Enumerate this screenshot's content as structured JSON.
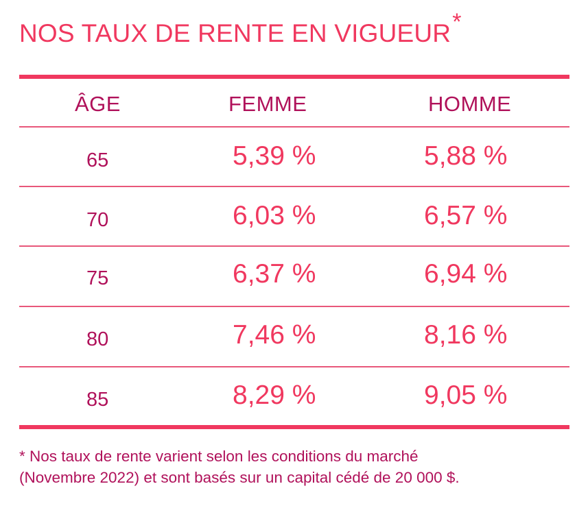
{
  "title": {
    "text": "NOS TAUX DE RENTE EN VIGUEUR",
    "marker": "*"
  },
  "table": {
    "headers": {
      "age": "ÂGE",
      "femme": "FEMME",
      "homme": "HOMME"
    },
    "rows": [
      {
        "age": "65",
        "femme": "5,39 %",
        "homme": "5,88 %"
      },
      {
        "age": "70",
        "femme": "6,03 %",
        "homme": "6,57 %"
      },
      {
        "age": "75",
        "femme": "6,37 %",
        "homme": "6,94 %"
      },
      {
        "age": "80",
        "femme": "7,46 %",
        "homme": "8,16 %"
      },
      {
        "age": "85",
        "femme": "8,29 %",
        "homme": "9,05 %"
      }
    ]
  },
  "footnote": {
    "line1": "* Nos taux de rente varient selon les conditions du marché",
    "line2": "(Novembre 2022) et sont basés sur un capital cédé de 20 000 $."
  },
  "colors": {
    "accent": "#f0385f",
    "dark_accent": "#b0115a"
  }
}
